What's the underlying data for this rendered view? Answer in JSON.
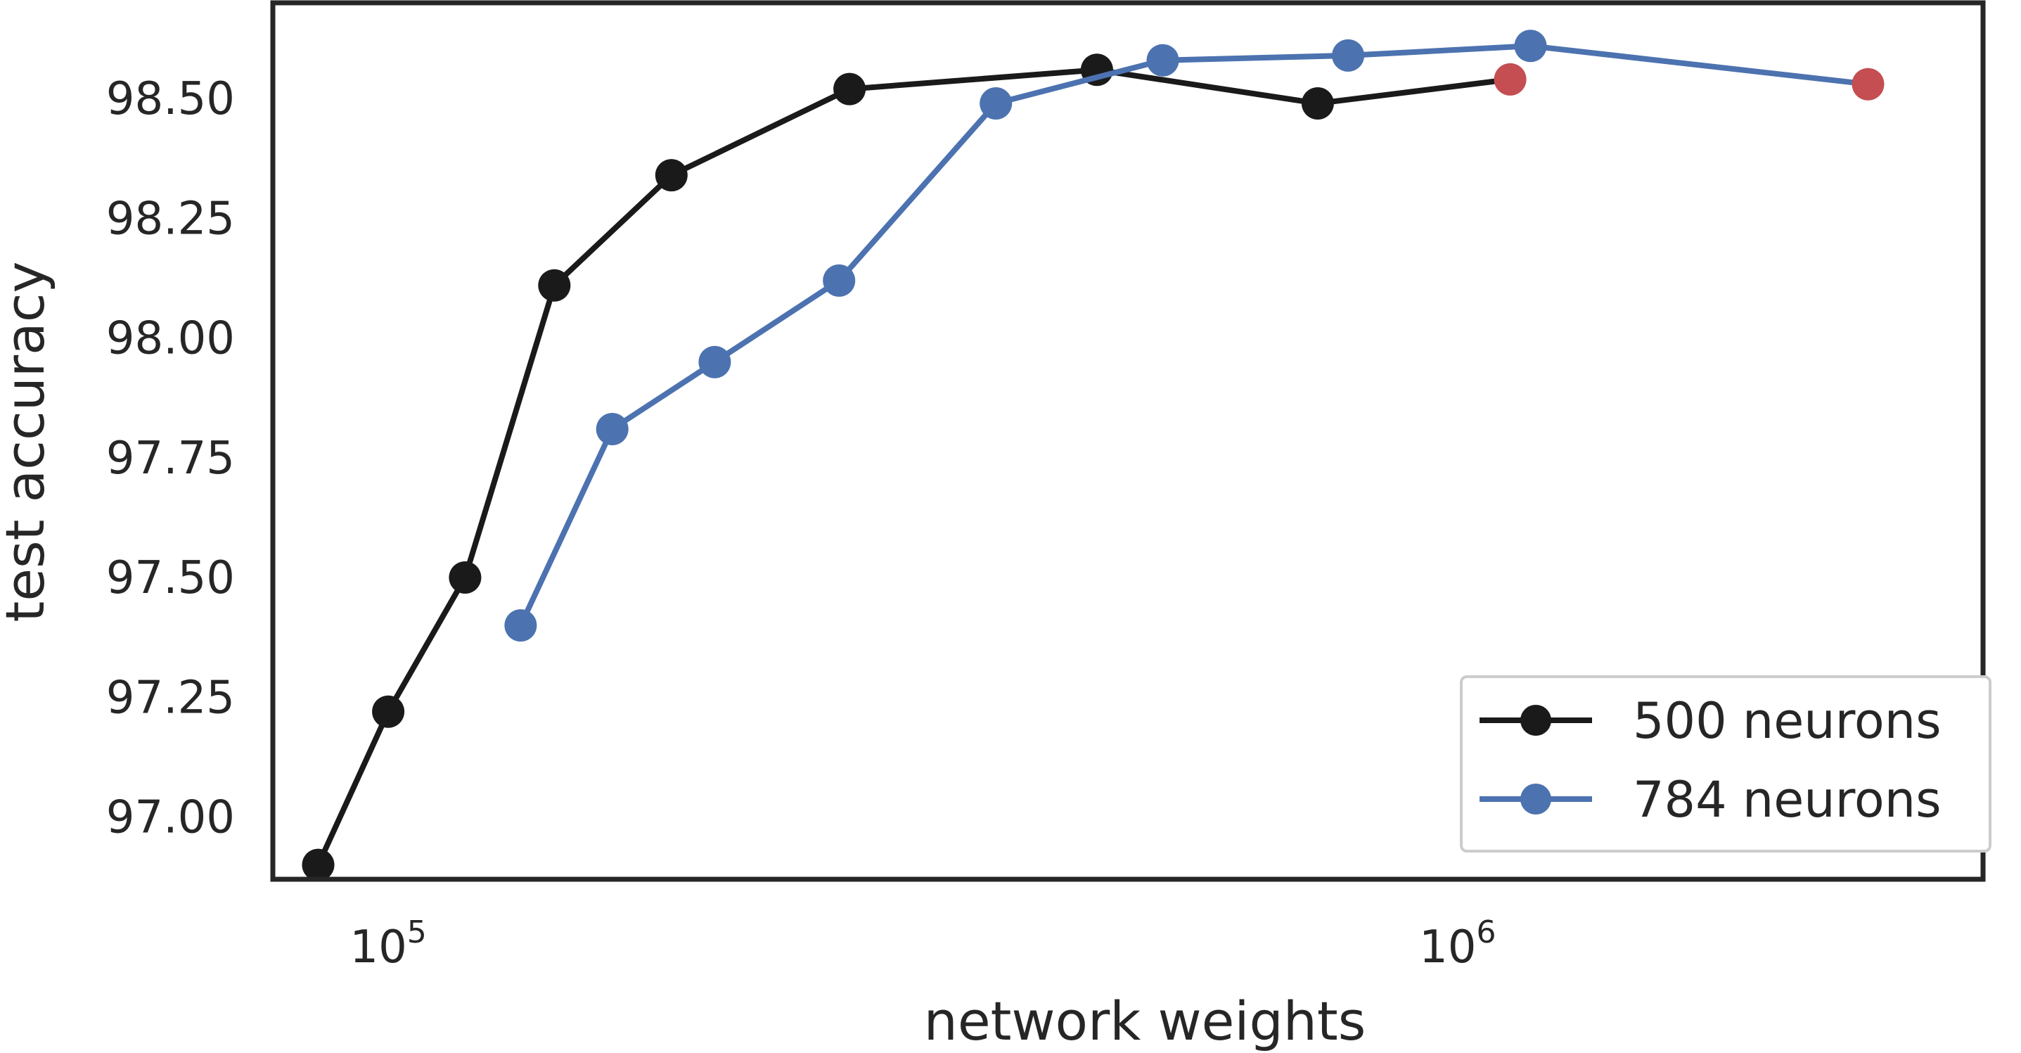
{
  "chart_data": {
    "type": "line",
    "title": "",
    "xlabel": "network weights",
    "ylabel": "test accuracy",
    "x_scale": "log",
    "xlim": [
      78000,
      3100000
    ],
    "ylim": [
      96.87,
      98.7
    ],
    "grid": false,
    "legend_position": "bottom-right",
    "x_ticks": [
      {
        "value": 100000,
        "base": "10",
        "exp": "5"
      },
      {
        "value": 1000000,
        "base": "10",
        "exp": "6"
      }
    ],
    "y_ticks": [
      "97.00",
      "97.25",
      "97.50",
      "97.75",
      "98.00",
      "98.25",
      "98.50"
    ],
    "colors": {
      "series_500": "#1a1a1a",
      "series_784": "#4c72b0",
      "highlight": "#c44e52",
      "frame": "#262626"
    },
    "series": [
      {
        "name": "500 neurons",
        "color": "#1a1a1a",
        "points": [
          {
            "x": 86000,
            "y": 96.9
          },
          {
            "x": 100000,
            "y": 97.22
          },
          {
            "x": 118000,
            "y": 97.5
          },
          {
            "x": 143000,
            "y": 98.11
          },
          {
            "x": 184000,
            "y": 98.34
          },
          {
            "x": 270000,
            "y": 98.52
          },
          {
            "x": 460000,
            "y": 98.56
          },
          {
            "x": 740000,
            "y": 98.49
          },
          {
            "x": 1120000,
            "y": 98.54,
            "highlight": true
          }
        ]
      },
      {
        "name": "784 neurons",
        "color": "#4c72b0",
        "points": [
          {
            "x": 133000,
            "y": 97.4
          },
          {
            "x": 162000,
            "y": 97.81
          },
          {
            "x": 202000,
            "y": 97.95
          },
          {
            "x": 264000,
            "y": 98.12
          },
          {
            "x": 370000,
            "y": 98.49
          },
          {
            "x": 530000,
            "y": 98.58
          },
          {
            "x": 790000,
            "y": 98.59
          },
          {
            "x": 1170000,
            "y": 98.61
          },
          {
            "x": 2420000,
            "y": 98.53,
            "highlight": true
          }
        ]
      }
    ]
  }
}
